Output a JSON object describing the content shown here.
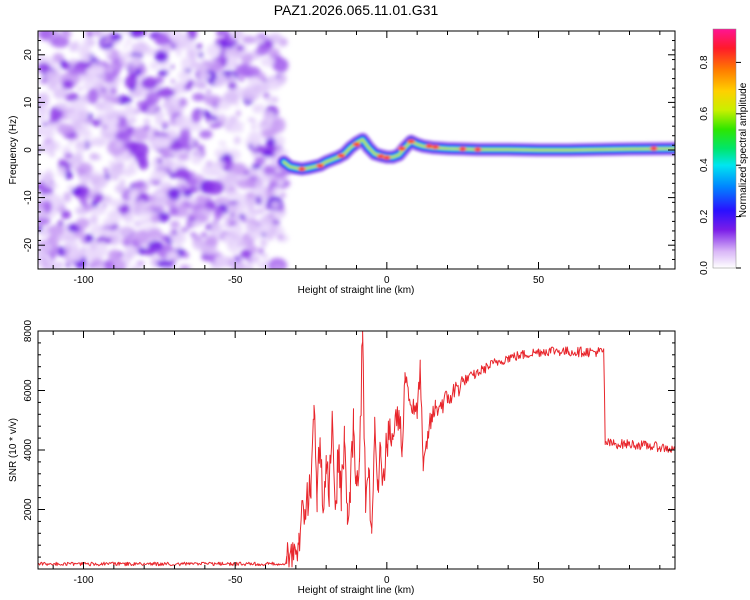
{
  "chart_data": [
    {
      "type": "heatmap",
      "title": "PAZ1.2026.065.11.01.G31",
      "xlabel": "Height of straight line (km)",
      "ylabel": "Frequency (Hz)",
      "xlim": [
        -115,
        95
      ],
      "ylim": [
        -25,
        25
      ],
      "xticks": [
        -100,
        -50,
        0,
        50
      ],
      "yticks": [
        -20,
        -10,
        0,
        10,
        20
      ],
      "noise_region_x": [
        -115,
        -34
      ],
      "ridge_x": [
        -34,
        -32,
        -30,
        -28,
        -26,
        -24,
        -22,
        -20,
        -18,
        -16,
        -14,
        -12,
        -10,
        -8,
        -6,
        -4,
        -2,
        0,
        2,
        4,
        6,
        8,
        10,
        12,
        15,
        20,
        25,
        30,
        40,
        50,
        60,
        70,
        80,
        95
      ],
      "ridge_freq": [
        -2.5,
        -3.5,
        -3.8,
        -4,
        -3.8,
        -3.5,
        -3.2,
        -2.5,
        -2,
        -1.5,
        -0.8,
        0.5,
        1.5,
        2.2,
        0.5,
        -0.8,
        -1.2,
        -1.5,
        -1.5,
        -1,
        0.5,
        1.8,
        1.2,
        0.8,
        0.5,
        0.3,
        0.2,
        0.1,
        0.1,
        0,
        0,
        0.1,
        0.2,
        0.3
      ],
      "colorbar": {
        "label": "Normalized spectral amplitude",
        "range": [
          0,
          0.93
        ],
        "ticks": [
          0.0,
          0.2,
          0.4,
          0.6,
          0.8
        ],
        "tick_labels": [
          "0.0",
          "0.2",
          "0.4",
          "0.6",
          "0.8"
        ]
      }
    },
    {
      "type": "line",
      "xlabel": "Height of straight line (km)",
      "ylabel": "SNR (10 * v/v)",
      "xlim": [
        -115,
        95
      ],
      "ylim": [
        0,
        8000
      ],
      "xticks": [
        -100,
        -50,
        0,
        50
      ],
      "yticks": [
        2000,
        4000,
        6000,
        8000
      ],
      "line_color": "#e8262c",
      "series": [
        {
          "name": "SNR",
          "x": [
            -115,
            -100,
            -80,
            -60,
            -40,
            -33,
            -30,
            -29,
            -27,
            -25,
            -24,
            -23,
            -22,
            -21,
            -20,
            -19,
            -18,
            -17,
            -16,
            -15,
            -14,
            -13,
            -12,
            -11,
            -10,
            -9,
            -8,
            -7,
            -6,
            -5,
            -4,
            -3,
            -2,
            -1,
            0,
            2,
            4,
            5,
            6,
            8,
            10,
            11,
            12,
            14,
            16,
            20,
            25,
            30,
            35,
            40,
            45,
            50,
            55,
            60,
            65,
            70,
            71.5,
            72,
            75,
            80,
            85,
            90,
            95
          ],
          "y": [
            170,
            170,
            170,
            170,
            170,
            180,
            650,
            1200,
            2000,
            2800,
            5500,
            2500,
            4300,
            1900,
            3200,
            2800,
            5300,
            2000,
            3800,
            2500,
            4300,
            1500,
            2800,
            4700,
            2800,
            3600,
            8000,
            1900,
            3400,
            1200,
            5100,
            3000,
            3800,
            3200,
            4200,
            4500,
            5300,
            3900,
            6600,
            5500,
            5200,
            6800,
            3300,
            4800,
            5400,
            5700,
            6300,
            6600,
            6900,
            7100,
            7200,
            7300,
            7350,
            7300,
            7300,
            7300,
            7300,
            4250,
            4200,
            4200,
            4150,
            4100,
            4000
          ]
        }
      ]
    }
  ]
}
